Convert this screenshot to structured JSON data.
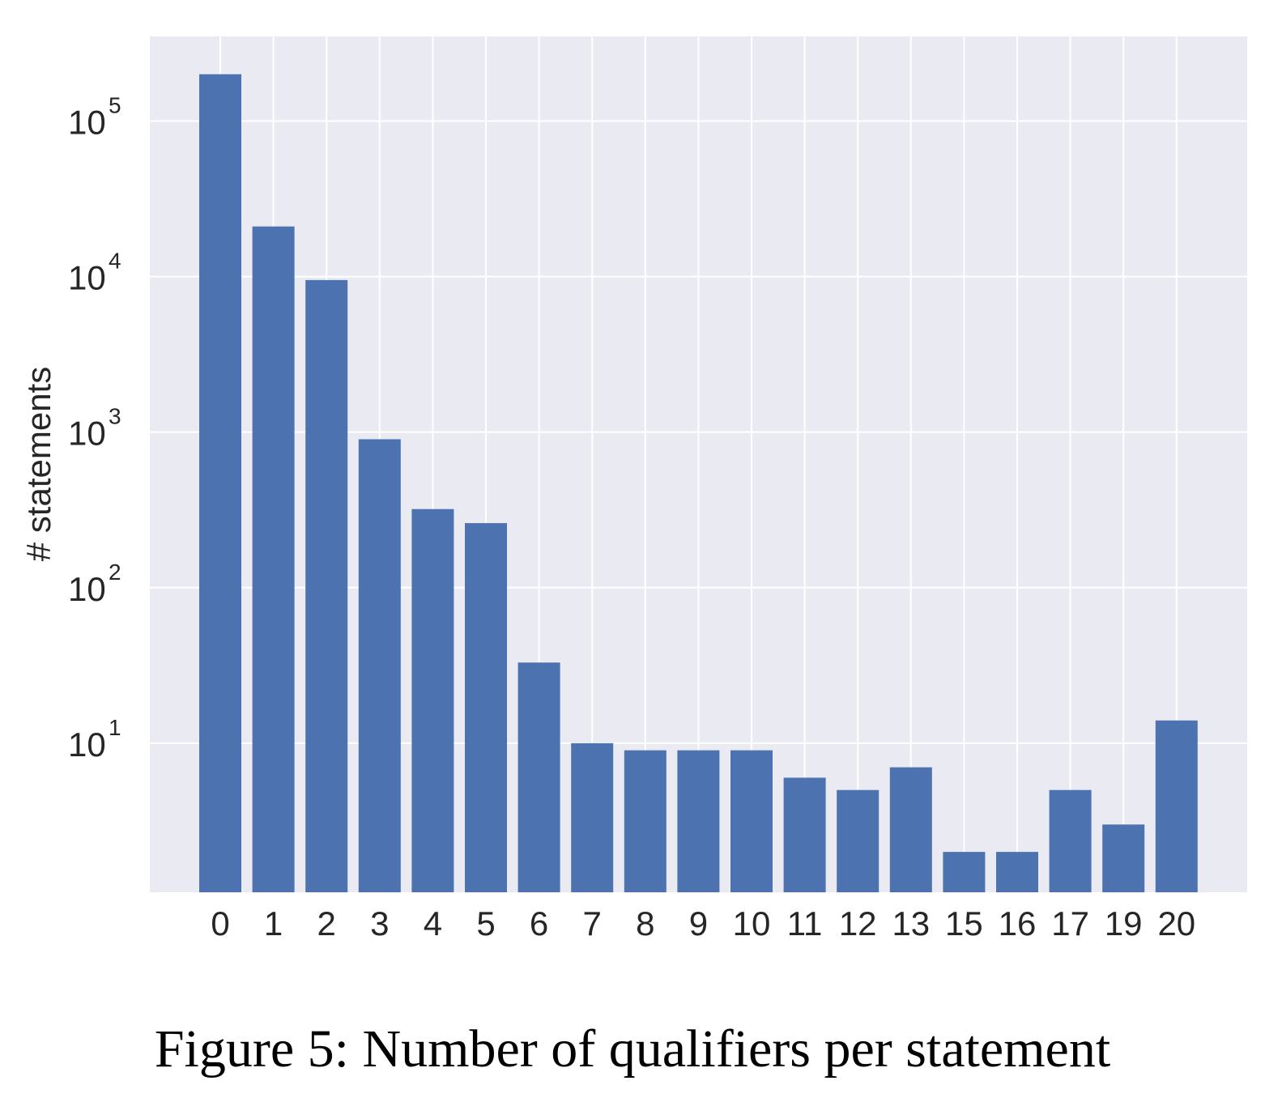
{
  "caption": "Figure 5: Number of qualifiers per statement",
  "chart_data": {
    "type": "bar",
    "title": "",
    "xlabel": "",
    "ylabel": "# statements",
    "yscale": "log",
    "ylim": [
      1.1,
      350000
    ],
    "grid": true,
    "y_ticks": [
      {
        "base": "10",
        "exp": "1",
        "value": 10
      },
      {
        "base": "10",
        "exp": "2",
        "value": 100
      },
      {
        "base": "10",
        "exp": "3",
        "value": 1000
      },
      {
        "base": "10",
        "exp": "4",
        "value": 10000
      },
      {
        "base": "10",
        "exp": "5",
        "value": 100000
      }
    ],
    "categories": [
      "0",
      "1",
      "2",
      "3",
      "4",
      "5",
      "6",
      "7",
      "8",
      "9",
      "10",
      "11",
      "12",
      "13",
      "15",
      "16",
      "17",
      "19",
      "20"
    ],
    "values": [
      200000,
      21000,
      9500,
      900,
      320,
      260,
      33,
      10,
      9,
      9,
      9,
      6,
      5,
      7,
      2,
      2,
      5,
      3,
      14
    ],
    "colors": {
      "bar": "#4c72b0",
      "background": "#eaeaf2",
      "grid": "#ffffff"
    }
  }
}
